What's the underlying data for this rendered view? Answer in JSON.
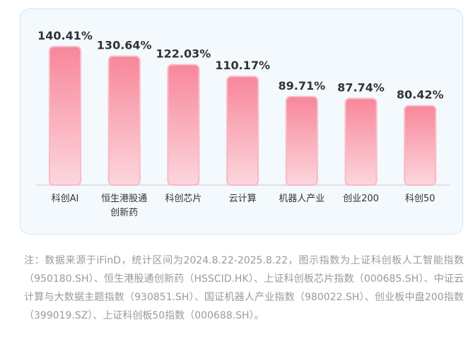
{
  "chart_data": {
    "type": "bar",
    "categories": [
      "科创AI",
      "恒生港股通创新药",
      "科创芯片",
      "云计算",
      "机器人产业",
      "创业200",
      "科创50"
    ],
    "values": [
      140.41,
      130.64,
      122.03,
      110.17,
      89.71,
      87.74,
      80.42
    ],
    "value_labels": [
      "140.41%",
      "130.64%",
      "122.03%",
      "110.17%",
      "89.71%",
      "87.74%",
      "80.42%"
    ],
    "color": "#f7879a"
  },
  "note": "注：数据来源于iFinD，统计区间为2024.8.22-2025.8.22，图示指数为上证科创板人工智能指数（950180.SH）、恒生港股通创新药（HSSCID.HK）、上证科创板芯片指数（000685.SH）、中证云计算与大数据主题指数（930851.SH）、国证机器人产业指数（980022.SH）、创业板中盘200指数（399019.SZ）、上证科创板50指数（000688.SH）。"
}
